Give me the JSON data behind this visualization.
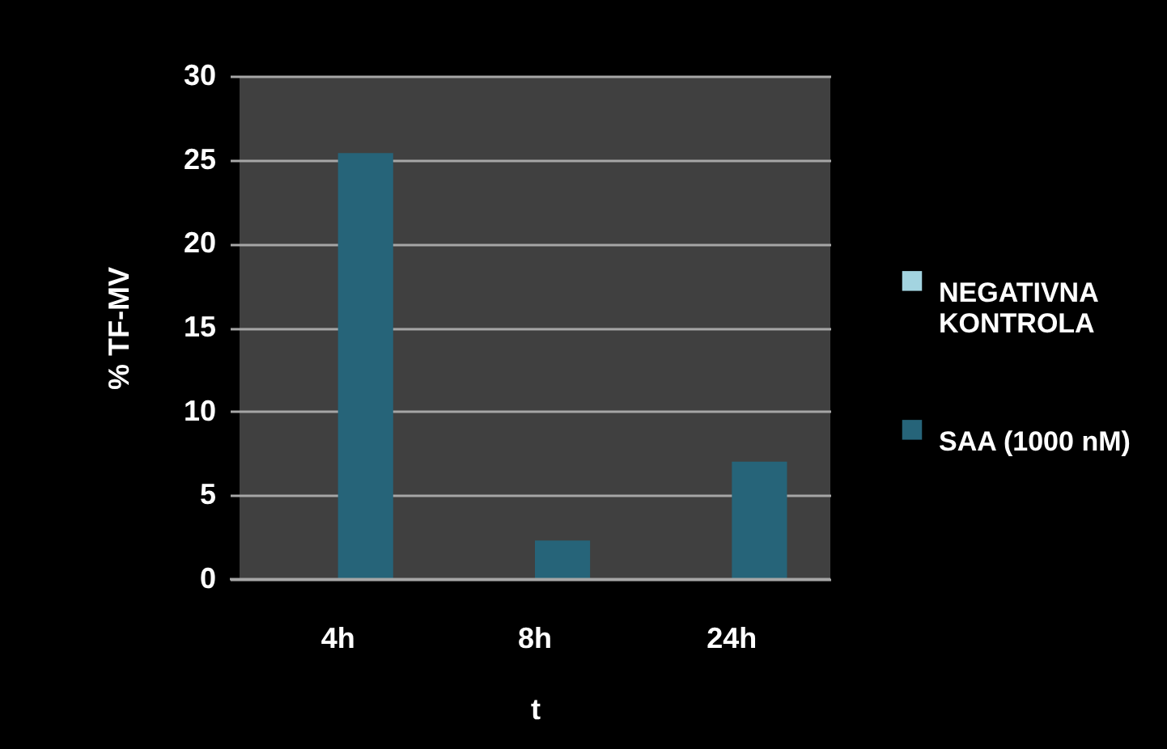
{
  "chart_data": {
    "type": "bar",
    "xlabel": "t",
    "ylabel": "% TF-MV",
    "categories": [
      "4h",
      "8h",
      "24h"
    ],
    "series": [
      {
        "name": "NEGATIVNA KONTROLA",
        "color": "#a3d4e0",
        "values": [
          null,
          null,
          null
        ]
      },
      {
        "name": "SAA (1000 nM)",
        "color": "#266479",
        "values": [
          25.4,
          2.3,
          7.0
        ]
      }
    ],
    "ylim": [
      0,
      30
    ],
    "yticks": [
      0,
      5,
      10,
      15,
      20,
      25,
      30
    ],
    "grid": "y",
    "legend": "right"
  }
}
